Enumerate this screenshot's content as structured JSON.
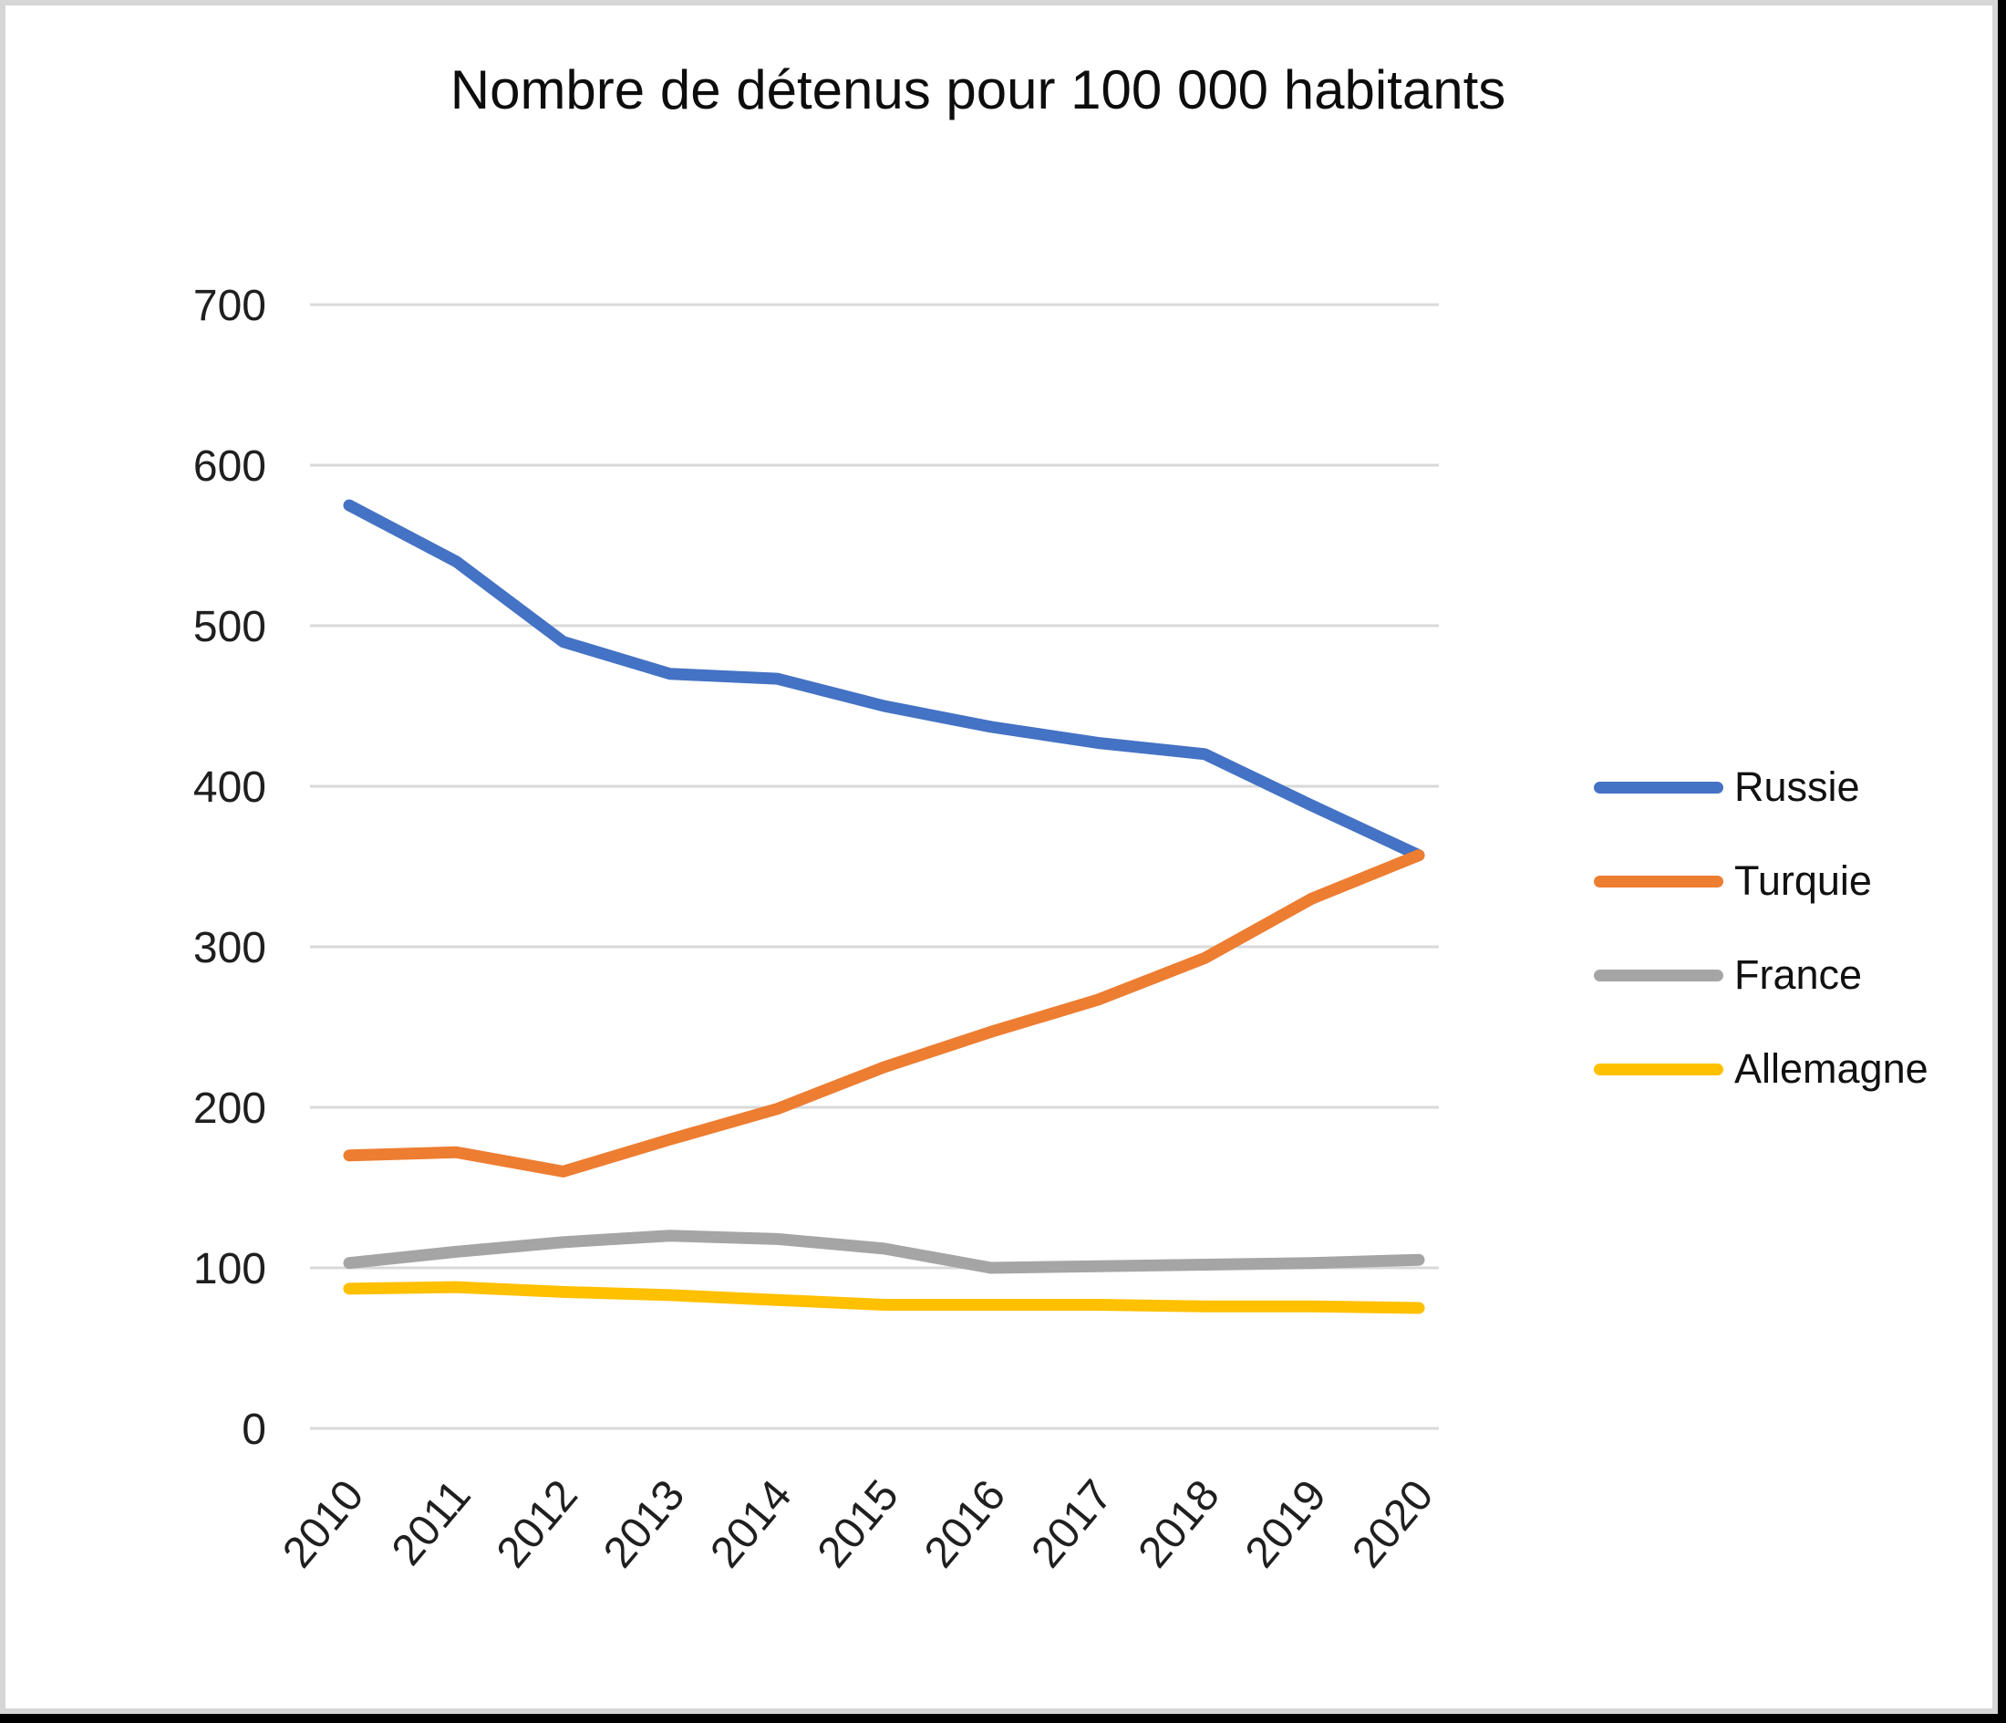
{
  "chart_data": {
    "type": "line",
    "title": "Nombre de détenus pour 100 000 habitants",
    "x": [
      "2010",
      "2011",
      "2012",
      "2013",
      "2014",
      "2015",
      "2016",
      "2017",
      "2018",
      "2019",
      "2020"
    ],
    "yticks": [
      0,
      100,
      200,
      300,
      400,
      500,
      600,
      700
    ],
    "ylim": [
      0,
      700
    ],
    "grid": true,
    "legend_position": "right",
    "series": [
      {
        "name": "Russie",
        "color": "#4472C4",
        "values": [
          575,
          540,
          490,
          470,
          467,
          450,
          437,
          427,
          420,
          388,
          357
        ]
      },
      {
        "name": "Turquie",
        "color": "#ED7D31",
        "values": [
          170,
          172,
          160,
          180,
          199,
          225,
          247,
          267,
          293,
          330,
          357
        ]
      },
      {
        "name": "France",
        "color": "#A5A5A5",
        "values": [
          103,
          110,
          116,
          120,
          118,
          112,
          100,
          101,
          102,
          103,
          105
        ]
      },
      {
        "name": "Allemagne",
        "color": "#FFC000",
        "values": [
          87,
          88,
          85,
          83,
          80,
          77,
          77,
          77,
          76,
          76,
          75
        ]
      }
    ]
  },
  "colors": {
    "gridline": "#D9D9D9",
    "axis_text": "#1f1f1f",
    "title_text": "#0d0d0d",
    "frame_border": "#D6D6D6",
    "frame_shadow": "#000000"
  }
}
